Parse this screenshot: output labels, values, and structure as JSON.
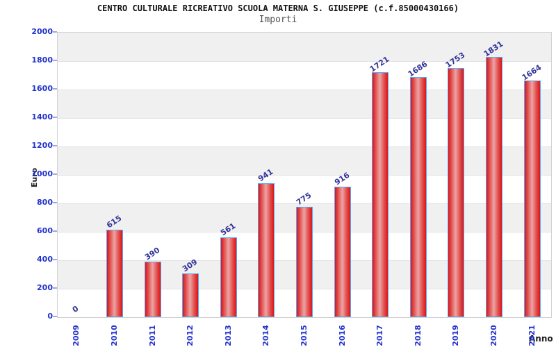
{
  "page": {
    "background": "#ffffff"
  },
  "chart_data": {
    "type": "bar",
    "title": "CENTRO CULTURALE RICREATIVO SCUOLA MATERNA S. GIUSEPPE (c.f.85000430166)",
    "subtitle": "Importi",
    "xlabel": "Anno",
    "ylabel": "Euro",
    "categories": [
      "2009",
      "2010",
      "2011",
      "2012",
      "2013",
      "2014",
      "2015",
      "2016",
      "2017",
      "2018",
      "2019",
      "2020",
      "2021"
    ],
    "values": [
      0,
      615,
      390,
      309,
      561,
      941,
      775,
      916,
      1721,
      1686,
      1753,
      1831,
      1664
    ],
    "ylim": [
      0,
      2000
    ],
    "ytick_step": 200,
    "grid": true,
    "legend_position": "none",
    "colors": {
      "bar_fill": "#dd1414",
      "bar_highlight": "#eda4a4",
      "bar_border": "#55aaff",
      "axis_tick_label": "#2233cc",
      "value_label": "#333399",
      "band": "#f0f0f0",
      "gridline": "#e2e2e2",
      "plot_border": "#d2d2d2",
      "title": "#111111",
      "subtitle": "#545454",
      "axis_title": "#222222"
    }
  }
}
